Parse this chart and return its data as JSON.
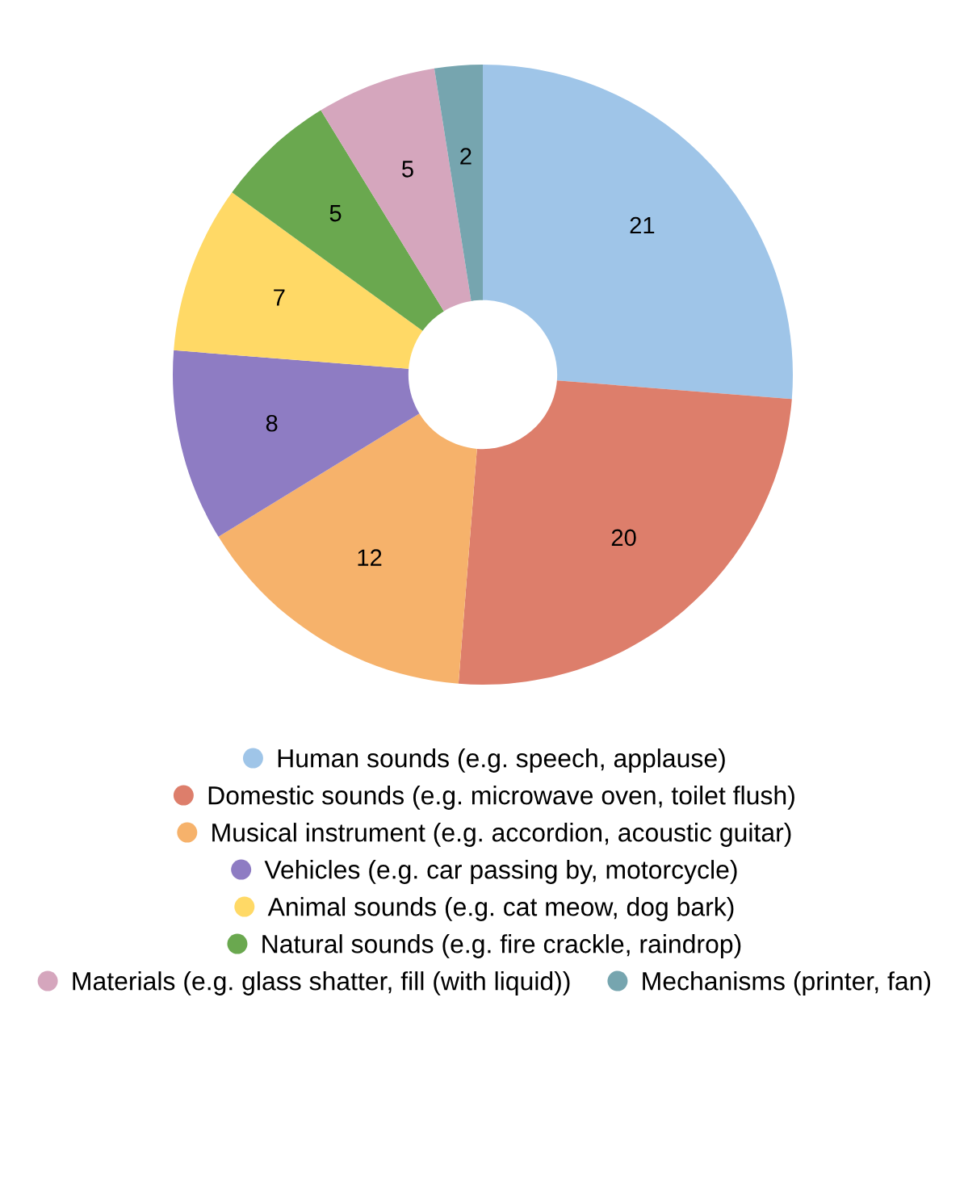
{
  "chart_data": {
    "type": "donut",
    "categories": [
      "Human sounds (e.g. speech, applause)",
      "Domestic sounds (e.g. microwave oven, toilet flush)",
      "Musical instrument (e.g. accordion, acoustic guitar)",
      "Vehicles (e.g. car passing by, motorcycle)",
      "Animal sounds (e.g. cat meow, dog bark)",
      "Natural sounds (e.g. fire crackle, raindrop)",
      "Materials (e.g. glass shatter, fill (with liquid))",
      "Mechanisms (printer, fan)"
    ],
    "values": [
      21,
      20,
      12,
      8,
      7,
      5,
      5,
      2
    ],
    "colors": [
      "#9fc5e8",
      "#dd7e6b",
      "#f6b26b",
      "#8e7cc3",
      "#ffd966",
      "#6aa84f",
      "#d5a6bd",
      "#76a5af"
    ],
    "data_labels": true,
    "legend": "bottom"
  }
}
